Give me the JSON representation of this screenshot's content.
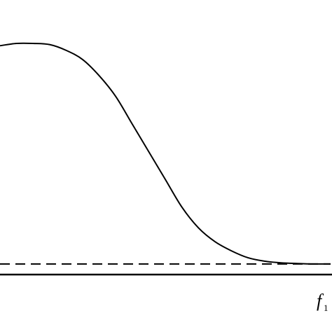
{
  "chart_data": {
    "type": "line",
    "x_tick_labels": [
      {
        "x": 1.0,
        "main": "f",
        "sub": "1"
      }
    ],
    "xlim": [
      0,
      1.0
    ],
    "ylim": [
      0,
      1.0
    ],
    "grid": false,
    "legend": "none",
    "series": [
      {
        "style": "solid",
        "color": "#000000",
        "x": [
          0.0,
          0.05,
          0.1,
          0.15,
          0.2,
          0.25,
          0.3,
          0.35,
          0.4,
          0.45,
          0.5,
          0.55,
          0.6,
          0.65,
          0.7,
          0.75,
          0.8,
          0.85,
          0.9,
          0.95,
          1.0
        ],
        "y": [
          0.99,
          1.0,
          1.0,
          0.995,
          0.97,
          0.93,
          0.86,
          0.77,
          0.65,
          0.53,
          0.41,
          0.29,
          0.2,
          0.14,
          0.1,
          0.07,
          0.055,
          0.048,
          0.045,
          0.043,
          0.043
        ]
      },
      {
        "style": "dashed",
        "color": "#000000",
        "x": [
          0.0,
          1.0
        ],
        "y": [
          0.043,
          0.043
        ]
      }
    ]
  }
}
